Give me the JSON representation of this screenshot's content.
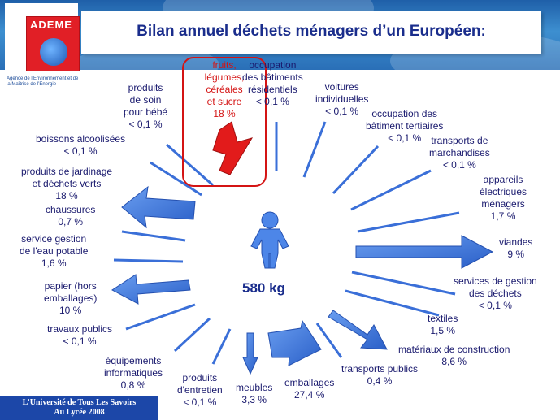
{
  "title": "Bilan annuel déchets ménagers d’un Européen:",
  "logo": {
    "name": "ADEME",
    "subtitle": "Agence de l’Environnement et de la Maîtrise de l’Energie"
  },
  "center": {
    "total": "580 kg"
  },
  "footer": {
    "line1": "L’Université de Tous Les Savoirs",
    "line2": "Au Lycée 2008"
  },
  "labels": {
    "fruits": {
      "l1": "fruits,",
      "l2": "légumes,",
      "l3": "céréales",
      "l4": "et sucre",
      "l5": "18 %"
    },
    "occ_res": {
      "l1": "occupation",
      "l2": "des bâtiments",
      "l3": "résidentiels",
      "l4": "< 0,1 %"
    },
    "voitures": {
      "l1": "voitures",
      "l2": "individuelles",
      "l3": "< 0,1 %"
    },
    "occ_ter": {
      "l1": "occupation des",
      "l2": "bâtiment tertiaires",
      "l3": "< 0,1 %"
    },
    "transport_march": {
      "l1": "transports de",
      "l2": "marchandises",
      "l3": "< 0,1 %"
    },
    "appareils": {
      "l1": "appareils",
      "l2": "électriques",
      "l3": "ménagers",
      "l4": "1,7 %"
    },
    "viandes": {
      "l1": "viandes",
      "l2": "9 %"
    },
    "services_dechets": {
      "l1": "services de gestion",
      "l2": "des déchets",
      "l3": "< 0,1 %"
    },
    "textiles": {
      "l1": "textiles",
      "l2": "1,5 %"
    },
    "materiaux": {
      "l1": "matériaux de construction",
      "l2": "8,6 %"
    },
    "transports_publics": {
      "l1": "transports publics",
      "l2": "0,4 %"
    },
    "emballages": {
      "l1": "emballages",
      "l2": "27,4 %"
    },
    "meubles": {
      "l1": "meubles",
      "l2": "3,3 %"
    },
    "entretien": {
      "l1": "produits",
      "l2": "d'entretien",
      "l3": "< 0,1 %"
    },
    "informatique": {
      "l1": "équipements",
      "l2": "informatiques",
      "l3": "0,8 %"
    },
    "travaux": {
      "l1": "travaux publics",
      "l2": "< 0,1 %"
    },
    "papier": {
      "l1": "papier (hors",
      "l2": "emballages)",
      "l3": "10 %"
    },
    "eau": {
      "l1": "service gestion",
      "l2": "de l'eau potable",
      "l3": "1,6 %"
    },
    "chaussures": {
      "l1": "chaussures",
      "l2": "0,7 %"
    },
    "jardinage": {
      "l1": "produits de jardinage",
      "l2": "et déchets verts",
      "l3": "18 %"
    },
    "boissons": {
      "l1": "boissons alcoolisées",
      "l2": "< 0,1 %"
    },
    "bebe": {
      "l1": "produits",
      "l2": "de soin",
      "l3": "pour bébé",
      "l4": "< 0,1 %"
    }
  },
  "colors": {
    "arrow": "#3a6fd8",
    "arrow_big": "#3b74e0",
    "fruit_arrow": "#e21b1b",
    "title": "#1a2d8c"
  }
}
